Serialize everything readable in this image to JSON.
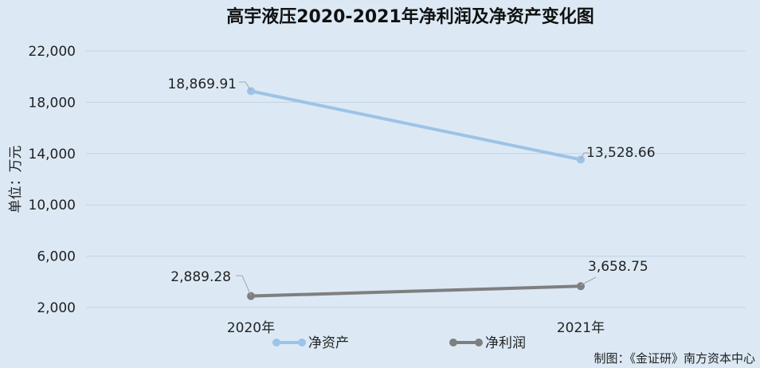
{
  "chart_data": {
    "type": "line",
    "title": "高宇液压2020-2021年净利润及净资产变化图",
    "ylabel": "单位：万元",
    "categories": [
      "2020年",
      "2021年"
    ],
    "series": [
      {
        "name": "净资产",
        "values": [
          18869.91,
          13528.66
        ],
        "labels": [
          "18,869.91",
          "13,528.66"
        ],
        "color": "#9dc3e6"
      },
      {
        "name": "净利润",
        "values": [
          2889.28,
          3658.75
        ],
        "labels": [
          "2,889.28",
          "3,658.75"
        ],
        "color": "#7f7f7f"
      }
    ],
    "ylim": [
      2000,
      22000
    ],
    "yticks": [
      {
        "value": 2000,
        "label": "2,000"
      },
      {
        "value": 6000,
        "label": "6,000"
      },
      {
        "value": 10000,
        "label": "10,000"
      },
      {
        "value": 14000,
        "label": "14,000"
      },
      {
        "value": 18000,
        "label": "18,000"
      },
      {
        "value": 22000,
        "label": "22,000"
      }
    ],
    "grid": true,
    "legend": "bottom"
  },
  "source": "制图：《金证研》南方资本中心"
}
